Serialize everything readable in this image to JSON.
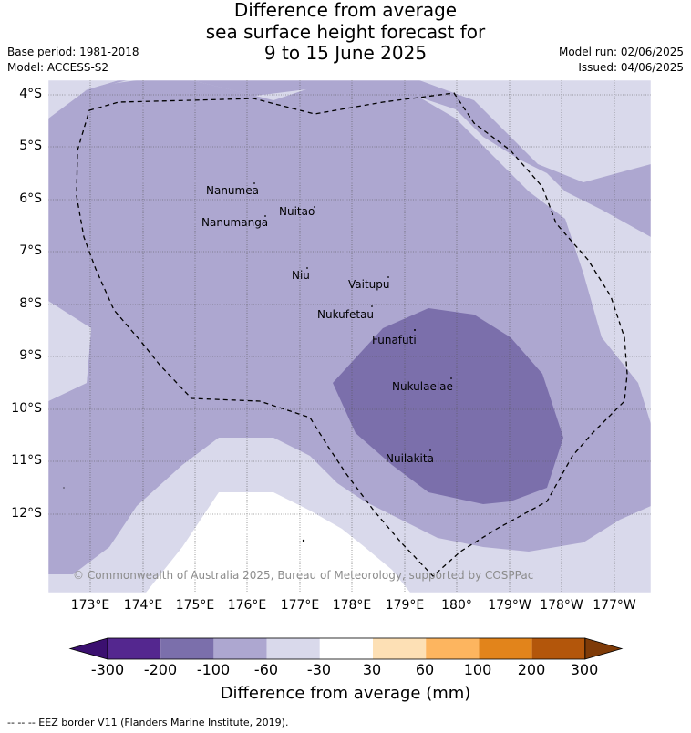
{
  "title": {
    "line1": "Difference from average",
    "line2": "sea surface height forecast for",
    "line3": "9 to 15 June 2025"
  },
  "meta": {
    "base_period": "Base period: 1981-2018",
    "model": "Model: ACCESS-S2",
    "model_run": "Model run: 02/06/2025",
    "issued": "Issued: 04/06/2025"
  },
  "lat_labels": [
    "4°S",
    "5°S",
    "6°S",
    "7°S",
    "8°S",
    "9°S",
    "10°S",
    "11°S",
    "12°S"
  ],
  "lon_labels": [
    "173°E",
    "174°E",
    "175°E",
    "176°E",
    "177°E",
    "178°E",
    "179°E",
    "180°",
    "179°W",
    "178°W",
    "177°W"
  ],
  "places": [
    "Nanumea",
    "Nuitao",
    "Nanumanga",
    "Niu",
    "Vaitupu",
    "Nukufetau",
    "Funafuti",
    "Nukulaelae",
    "Nuilakita"
  ],
  "copyright": "© Commonwealth of Australia 2025, Bureau of Meteorology, supported by COSPPac",
  "colorbar": {
    "ticks": [
      "-300",
      "-200",
      "-100",
      "-60",
      "-30",
      "30",
      "60",
      "100",
      "200",
      "300"
    ],
    "colors": [
      "#3b1070",
      "#54278f",
      "#7b6fab",
      "#ada7d0",
      "#d9d9eb",
      "#ffffff",
      "#fde0b5",
      "#fdb55f",
      "#e2841b",
      "#b3560b",
      "#7f3b08"
    ],
    "label": "Difference from average (mm)"
  },
  "footnote": "--  --  -- EEZ border V11 (Flanders Marine Institute, 2019)."
}
